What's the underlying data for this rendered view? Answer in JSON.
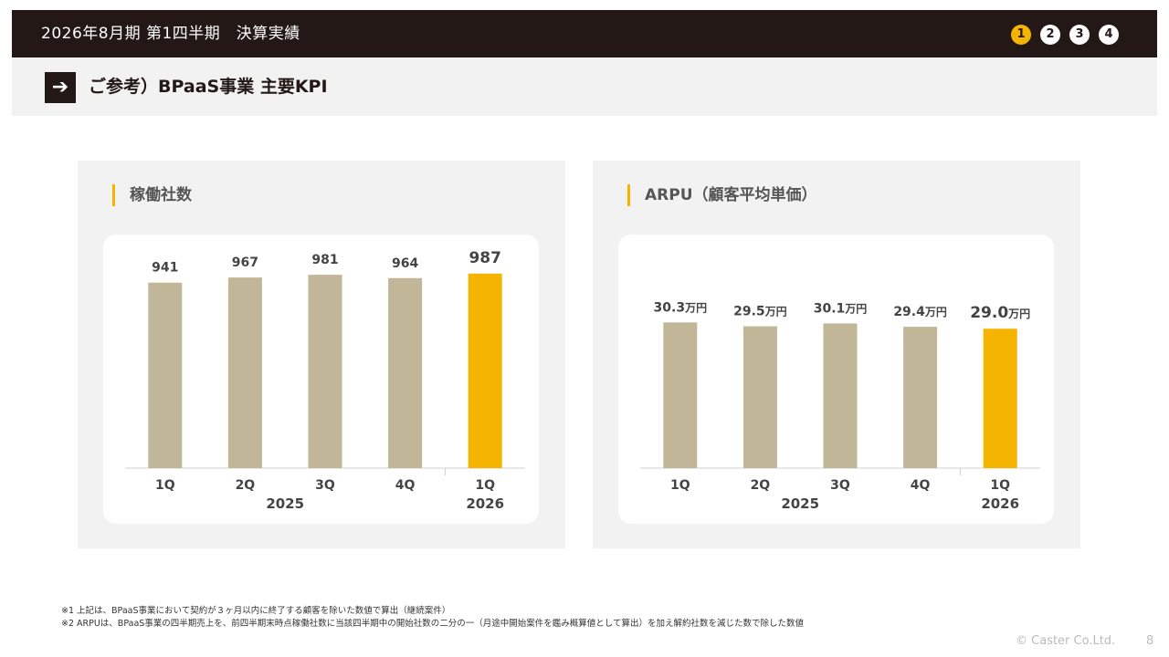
{
  "header": {
    "title": "2026年8月期 第1四半期　決算実績",
    "steps": [
      "1",
      "2",
      "3",
      "4"
    ]
  },
  "section": {
    "arrow": "➔",
    "title": "ご参考）BPaaS事業 主要KPI"
  },
  "chart_data": [
    {
      "type": "bar",
      "title": "稼働社数",
      "categories": [
        "1Q",
        "2Q",
        "3Q",
        "4Q",
        "1Q"
      ],
      "groups": [
        {
          "label": "2025",
          "span": [
            0,
            3
          ]
        },
        {
          "label": "2026",
          "span": [
            4,
            4
          ]
        }
      ],
      "values": [
        941,
        967,
        981,
        964,
        987
      ],
      "value_labels": [
        "941",
        "967",
        "981",
        "964",
        "987"
      ],
      "unit": "",
      "highlight_index": 4,
      "colors": {
        "base": "#c1b698",
        "highlight": "#f5b400"
      },
      "ylim": [
        0,
        1000
      ]
    },
    {
      "type": "bar",
      "title": "ARPU（顧客平均単価）",
      "categories": [
        "1Q",
        "2Q",
        "3Q",
        "4Q",
        "1Q"
      ],
      "groups": [
        {
          "label": "2025",
          "span": [
            0,
            3
          ]
        },
        {
          "label": "2026",
          "span": [
            4,
            4
          ]
        }
      ],
      "values": [
        30.3,
        29.5,
        30.1,
        29.4,
        29.0
      ],
      "value_labels": [
        "30.3",
        "29.5",
        "30.1",
        "29.4",
        "29.0"
      ],
      "unit": "万円",
      "highlight_index": 4,
      "colors": {
        "base": "#c1b698",
        "highlight": "#f5b400"
      },
      "ylim": [
        0,
        41
      ]
    }
  ],
  "footnotes": [
    "※1 上記は、BPaaS事業において契約が３ヶ月以内に終了する顧客を除いた数値で算出（継続案件）",
    "※2 ARPUは、BPaaS事業の四半期売上を、前四半期末時点稼働社数に当該四半期中の開始社数の二分の一（月途中開始案件を鑑み概算値として算出）を加え解約社数を減じた数で除した数値"
  ],
  "copyright": "© Caster Co.Ltd.",
  "page_number": "8"
}
